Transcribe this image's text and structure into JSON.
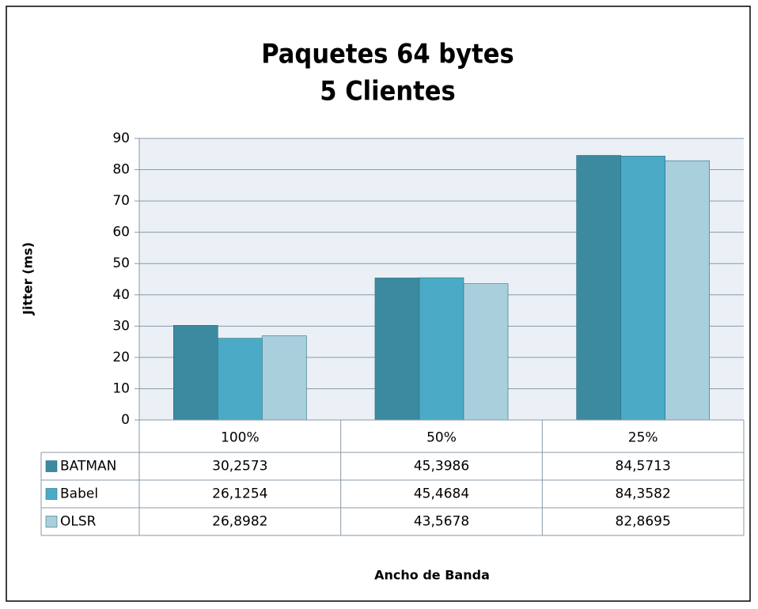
{
  "chart_data": {
    "type": "bar",
    "title": [
      "Paquetes 64 bytes",
      "5 Clientes"
    ],
    "y_label": "Jitter (ms)",
    "x_label": "Ancho de Banda",
    "categories": [
      "100%",
      "50%",
      "25%"
    ],
    "series": [
      {
        "name": "BATMAN",
        "color": "#3b8aa0",
        "values": [
          30.2573,
          45.3986,
          84.5713
        ],
        "value_labels": [
          "30,2573",
          "45,3986",
          "84,5713"
        ]
      },
      {
        "name": "Babel",
        "color": "#4babc6",
        "values": [
          26.1254,
          45.4684,
          84.3582
        ],
        "value_labels": [
          "26,1254",
          "45,4684",
          "84,3582"
        ]
      },
      {
        "name": "OLSR",
        "color": "#a9cfdd",
        "values": [
          26.8982,
          43.5678,
          82.8695
        ],
        "value_labels": [
          "26,8982",
          "43,5678",
          "82,8695"
        ]
      }
    ],
    "ylim": [
      0,
      90
    ],
    "yticks": [
      0,
      10,
      20,
      30,
      40,
      50,
      60,
      70,
      80,
      90
    ],
    "grid": true
  }
}
